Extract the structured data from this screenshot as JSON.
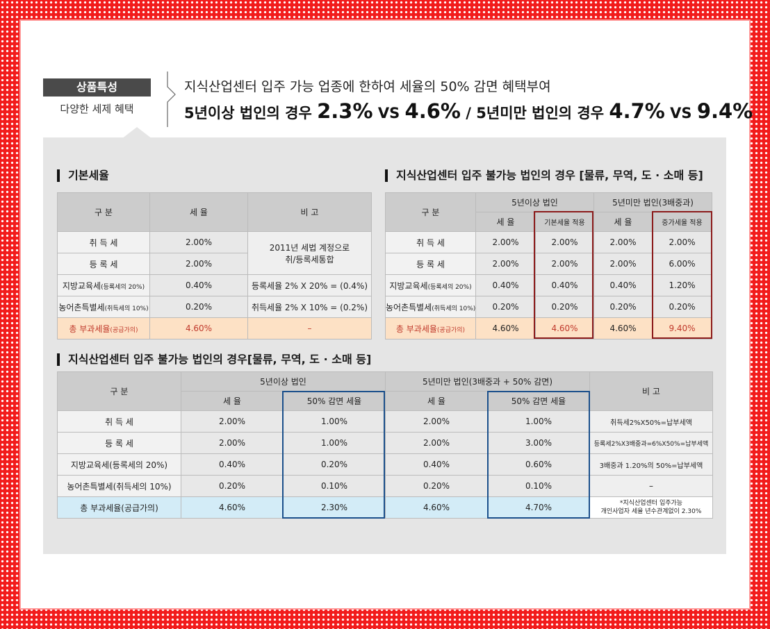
{
  "header": {
    "badge": "상품특성",
    "subbadge": "다양한 세제 혜택",
    "line1": "지식산업센터 입주 가능 업종에 한하여 세율의 50% 감면 혜택부여",
    "line2_a": "5년이상 법인의 경우 ",
    "line2_b": "2.3%",
    "line2_c": " VS ",
    "line2_d": "4.6%",
    "line2_e": " / 5년미만 법인의 경우 ",
    "line2_f": "4.7%",
    "line2_g": " VS ",
    "line2_h": "9.4%"
  },
  "basic": {
    "title": "기본세율",
    "headers": [
      "구  분",
      "세 율",
      "비  고"
    ],
    "rows": [
      {
        "label": "취 득 세",
        "rate": "2.00%"
      },
      {
        "label": "등 록 세",
        "rate": "2.00%"
      },
      {
        "label": "지방교육세",
        "label_small": "(등록세의 20%)",
        "rate": "0.40%",
        "note": "등록세율 2% X 20% = (0.4%)"
      },
      {
        "label": "농어촌특별세",
        "label_small": "(취득세의 10%)",
        "rate": "0.20%",
        "note": "취득세율 2% X 10% = (0.2%)"
      }
    ],
    "merged_note_1": "2011년 세법 계정으로",
    "merged_note_2": "취/등록세통합",
    "total": {
      "label": "총 부과세율",
      "label_small": "(공급가의)",
      "rate": "4.60%",
      "note": "–"
    }
  },
  "unavail": {
    "title": "지식산업센터 입주 불가능 법인의 경우 [물류, 무역, 도 · 소매 등]",
    "h_gubun": "구  분",
    "h_over5": "5년이상 법인",
    "h_under5": "5년미만 법인(3배중과)",
    "sub": [
      "세 율",
      "기본세율 적용",
      "세 율",
      "중가세율 적용"
    ],
    "rows": [
      {
        "label": "취 득 세",
        "v": [
          "2.00%",
          "2.00%",
          "2.00%",
          "2.00%"
        ]
      },
      {
        "label": "등 록 세",
        "v": [
          "2.00%",
          "2.00%",
          "2.00%",
          "6.00%"
        ]
      },
      {
        "label": "지방교육세",
        "label_small": "(등록세의 20%)",
        "v": [
          "0.40%",
          "0.40%",
          "0.40%",
          "1.20%"
        ]
      },
      {
        "label": "농어촌특별세",
        "label_small": "(취득세의 10%)",
        "v": [
          "0.20%",
          "0.20%",
          "0.20%",
          "0.20%"
        ]
      }
    ],
    "total": {
      "label": "총 부과세율",
      "label_small": "(공급가의)",
      "v": [
        "4.60%",
        "4.60%",
        "4.60%",
        "9.40%"
      ]
    }
  },
  "avail": {
    "title": "지식산업센터 입주 불가능 법인의 경우[물류, 무역, 도 · 소매 등]",
    "h_gubun": "구  분",
    "h_over5": "5년이상 법인",
    "h_under5": "5년미만 법인(3배중과 + 50% 감면)",
    "h_note": "비  고",
    "sub": [
      "세 율",
      "50% 감면 세율",
      "세 율",
      "50% 감면 세율"
    ],
    "rows": [
      {
        "label": "취 득 세",
        "v": [
          "2.00%",
          "1.00%",
          "2.00%",
          "1.00%"
        ],
        "note": "취득세2%X50%=납부세액"
      },
      {
        "label": "등 록 세",
        "v": [
          "2.00%",
          "1.00%",
          "2.00%",
          "3.00%"
        ],
        "note": "등록세2%X3배중과=6%X50%=납부세액"
      },
      {
        "label": "지방교육세(등록세의 20%)",
        "v": [
          "0.40%",
          "0.20%",
          "0.40%",
          "0.60%"
        ],
        "note": "3배중과 1.20%의 50%=납부세액"
      },
      {
        "label": "농어촌특별세(취득세의 10%)",
        "v": [
          "0.20%",
          "0.10%",
          "0.20%",
          "0.10%"
        ],
        "note": "–"
      }
    ],
    "total": {
      "label": "총 부과세율(공급가의)",
      "v": [
        "4.60%",
        "2.30%",
        "4.60%",
        "4.70%"
      ],
      "note_1": "*지식산업센터 입주가능",
      "note_2": "개인사업자 세율 년수관계없이 2.30%"
    }
  }
}
